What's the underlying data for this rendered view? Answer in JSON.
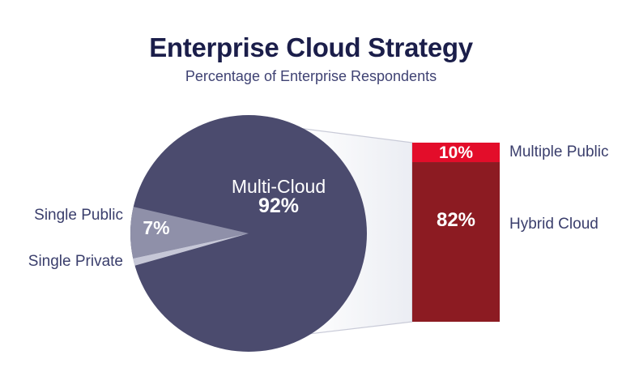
{
  "chart_data": {
    "type": "pie",
    "title": "Enterprise Cloud Strategy",
    "subtitle": "Percentage of Enterprise Respondents",
    "grid": false,
    "slices": [
      {
        "label": "Multi-Cloud",
        "value": 92,
        "display": "92%",
        "color": "#4b4b6e"
      },
      {
        "label": "Single Public",
        "value": 7,
        "display": "7%",
        "color": "#8f90a9"
      },
      {
        "label": "Single Private",
        "value": null,
        "color": "#c6c7d7"
      }
    ],
    "breakdown": {
      "source_slice": "Multi-Cloud",
      "type": "stacked-bar",
      "segments": [
        {
          "label": "Multiple Public",
          "value": 10,
          "display": "10%",
          "color": "#e30d2a"
        },
        {
          "label": "Hybrid Cloud",
          "value": 82,
          "display": "82%",
          "color": "#8c1b22"
        }
      ]
    }
  },
  "colors": {
    "title": "#1b1e4a",
    "subtitle": "#3f4273",
    "side_label": "#3a3e6c",
    "on_dark": "#ffffff",
    "band_stroke": "#c9cbd8",
    "band_fill_start": "#ffffff",
    "band_fill_end": "#ebedf3"
  }
}
